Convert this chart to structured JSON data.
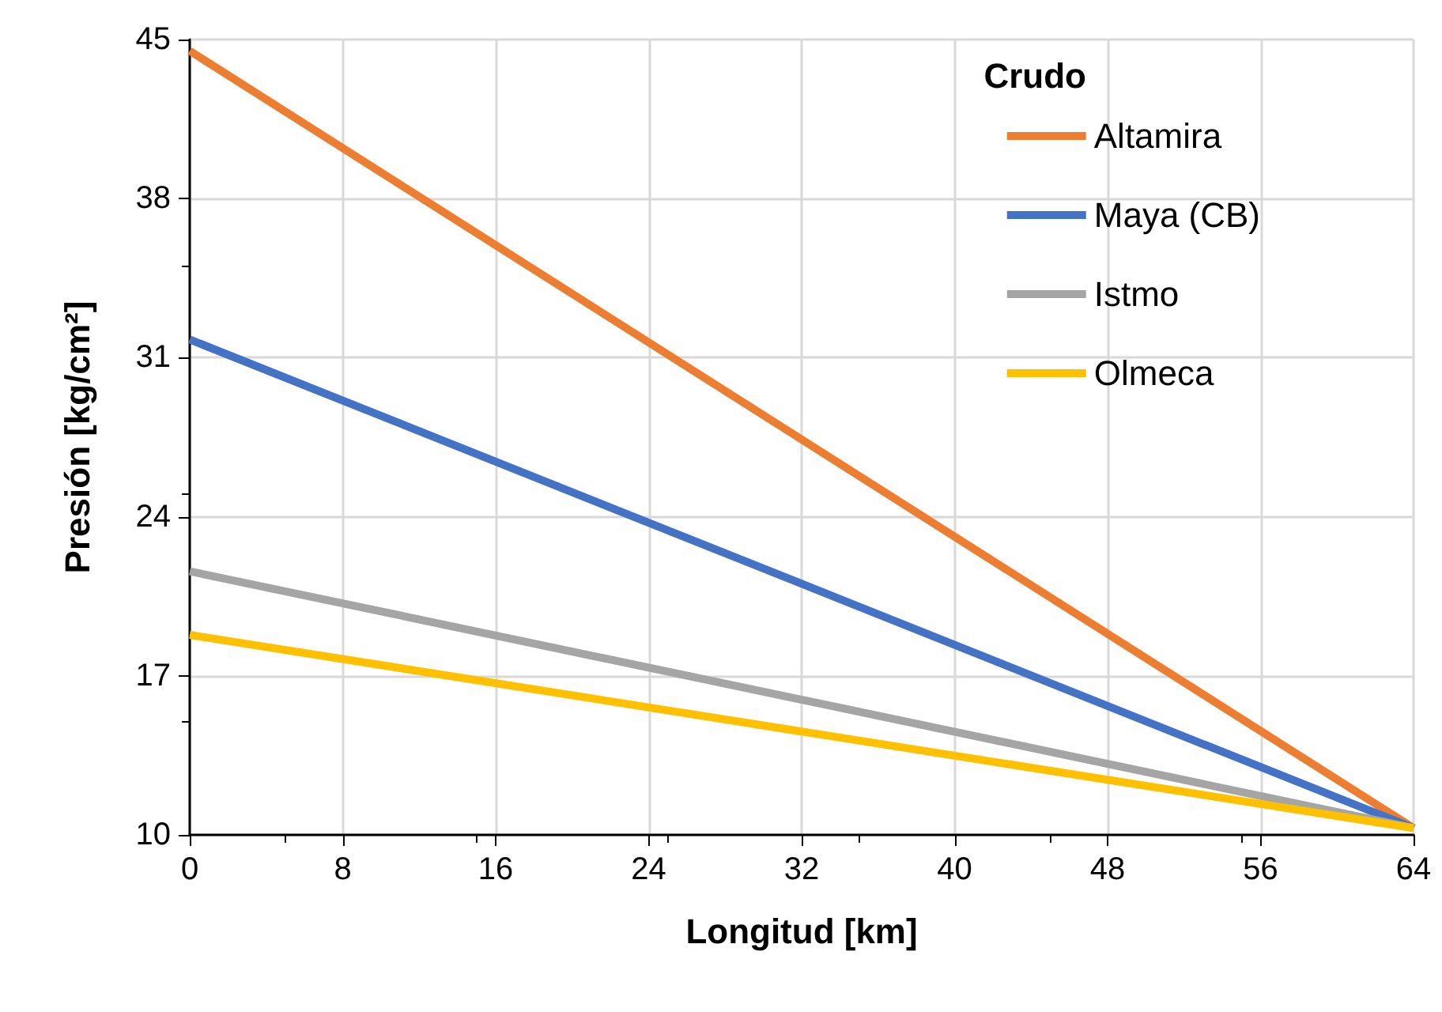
{
  "chart_data": {
    "type": "line",
    "xlabel": "Longitud [km]",
    "ylabel": "Presión [kg/cm²]",
    "legend_title": "Crudo",
    "x": [
      0,
      64
    ],
    "series": [
      {
        "name": "Altamira",
        "color": "#ed7d31",
        "values": [
          44.5,
          10.3
        ]
      },
      {
        "name": "Maya (CB)",
        "color": "#4472c4",
        "values": [
          31.8,
          10.3
        ]
      },
      {
        "name": "Istmo",
        "color": "#a5a5a5",
        "values": [
          21.6,
          10.3
        ]
      },
      {
        "name": "Olmeca",
        "color": "#ffc000",
        "values": [
          18.8,
          10.3
        ]
      }
    ],
    "xlim": [
      0,
      64
    ],
    "xticks": [
      0,
      8,
      16,
      24,
      32,
      40,
      48,
      56,
      64
    ],
    "ylim": [
      10,
      45
    ],
    "yticks": [
      10,
      17,
      24,
      31,
      38,
      45
    ],
    "grid": true,
    "legend": "top right",
    "marker": "none",
    "line_style": "solid"
  }
}
